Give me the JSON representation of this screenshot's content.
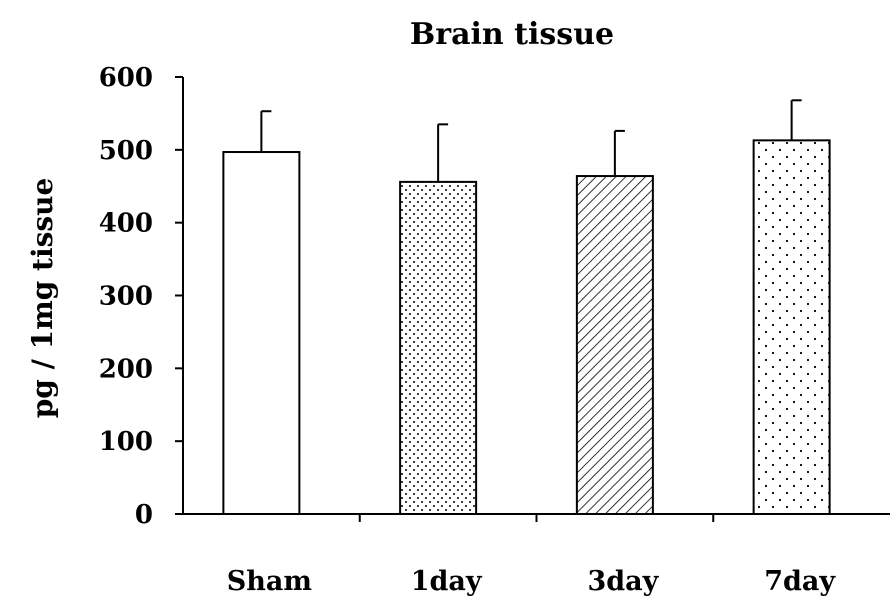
{
  "chart_data": {
    "type": "bar",
    "title": "Brain tissue",
    "xlabel": "",
    "ylabel": "pg / 1mg tissue",
    "ylim": [
      0,
      600
    ],
    "yticks": [
      "0",
      "100",
      "200",
      "300",
      "400",
      "500",
      "600"
    ],
    "categories": [
      "Sham",
      "1day",
      "3day",
      "7day"
    ],
    "values": [
      497,
      456,
      464,
      513
    ],
    "errors": [
      56,
      79,
      62,
      55
    ],
    "fill_patterns": [
      "none",
      "dots",
      "hatch",
      "sparse-dots"
    ],
    "grid": false,
    "legend": "none"
  },
  "colors": {
    "bar_fill": "#ffffff",
    "stroke": "#000000"
  }
}
